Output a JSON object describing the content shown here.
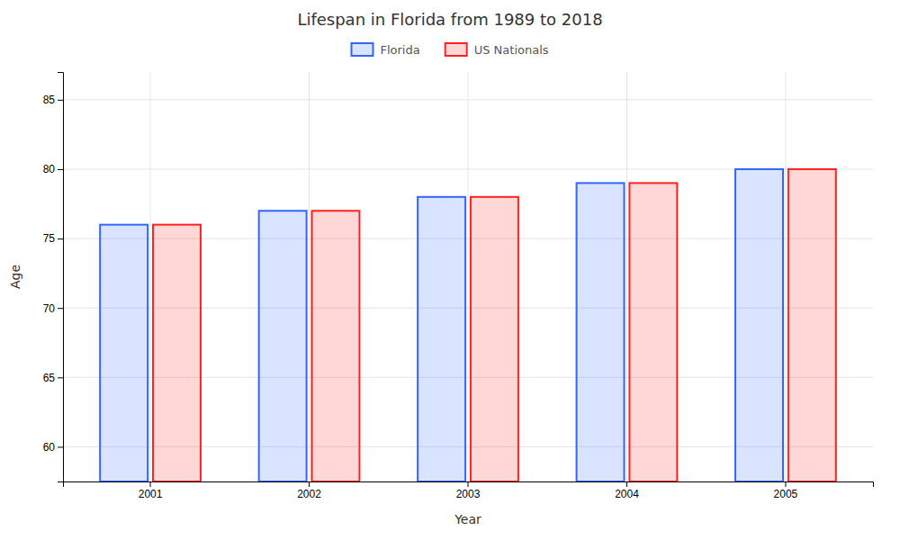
{
  "chart_data": {
    "type": "bar",
    "title": "Lifespan in Florida from 1989 to 2018",
    "xlabel": "Year",
    "ylabel": "Age",
    "categories": [
      "2001",
      "2002",
      "2003",
      "2004",
      "2005"
    ],
    "series": [
      {
        "name": "Florida",
        "color": "#3366ff",
        "values": [
          76.0,
          77.0,
          78.0,
          79.0,
          80.0
        ]
      },
      {
        "name": "US Nationals",
        "color": "#ff2222",
        "values": [
          76.0,
          77.0,
          78.0,
          79.0,
          80.0
        ]
      }
    ],
    "ylim": [
      57.5,
      87
    ],
    "yticks": [
      60,
      65,
      70,
      75,
      80,
      85
    ],
    "grid": true,
    "legend": "top"
  }
}
